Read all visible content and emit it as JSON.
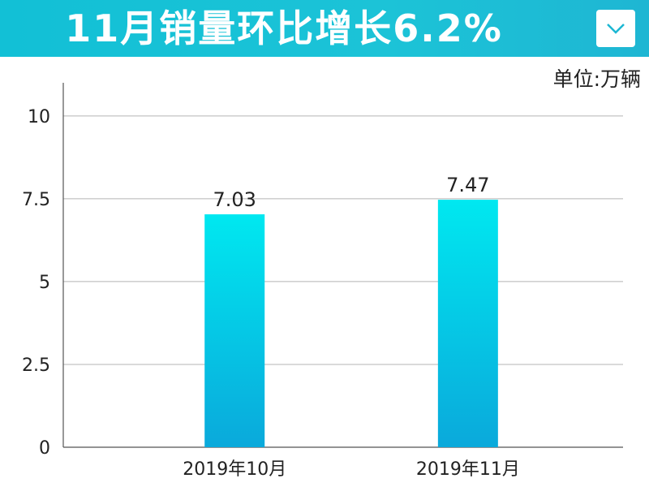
{
  "header": {
    "title": "11月销量环比增长6.2%",
    "dropdown_icon": "chevron-down-icon"
  },
  "unit_label": "单位:万辆",
  "colors": {
    "header_bg": "#17bfd6",
    "bar_top": "#00e8f0",
    "bar_bottom": "#0aa9db",
    "grid": "#b5b5b5",
    "axis": "#555555"
  },
  "chart_data": {
    "type": "bar",
    "title": "11月销量环比增长6.2%",
    "xlabel": "",
    "ylabel": "单位:万辆",
    "categories": [
      "2019年10月",
      "2019年11月"
    ],
    "values": [
      7.03,
      7.47
    ],
    "data_labels": [
      "7.03",
      "7.47"
    ],
    "ylim": [
      0,
      11
    ],
    "yticks": [
      0,
      2.5,
      5,
      7.5,
      10
    ],
    "ytick_labels": [
      "0",
      "2.5",
      "5",
      "7.5",
      "10"
    ],
    "grid": true,
    "legend": "none"
  }
}
